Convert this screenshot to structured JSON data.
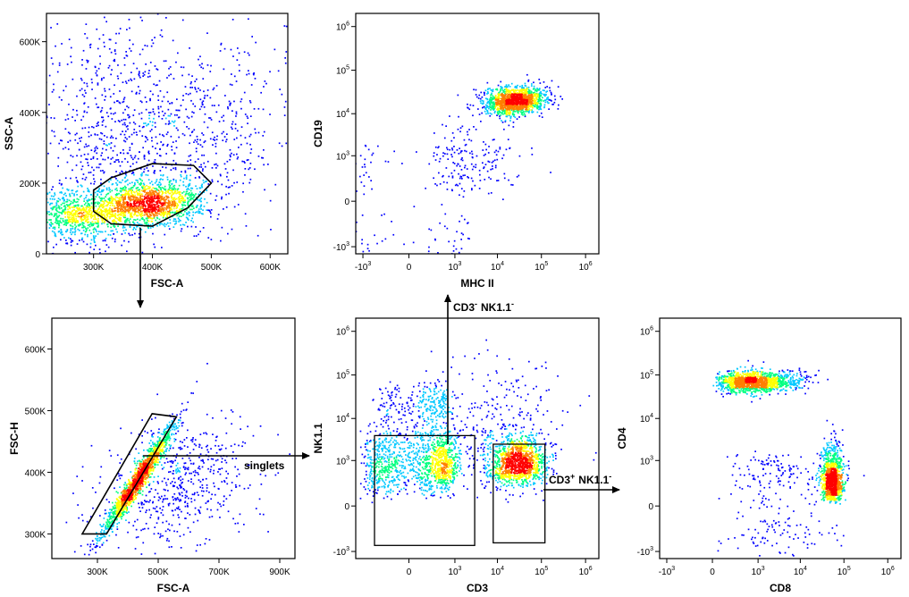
{
  "chart_data": [
    {
      "id": "p1",
      "type": "scatter",
      "subtype": "density",
      "xlabel": "FSC-A",
      "ylabel": "SSC-A",
      "xscale": "linear",
      "yscale": "linear",
      "xlim": [
        220000,
        630000
      ],
      "ylim": [
        0,
        680000
      ],
      "xticks": [
        {
          "v": 300000,
          "label": "300K"
        },
        {
          "v": 400000,
          "label": "400K"
        },
        {
          "v": 500000,
          "label": "500K"
        },
        {
          "v": 600000,
          "label": "600K"
        }
      ],
      "yticks": [
        {
          "v": 0,
          "label": "0"
        },
        {
          "v": 200000,
          "label": "200K"
        },
        {
          "v": 400000,
          "label": "400K"
        },
        {
          "v": 600000,
          "label": "600K"
        }
      ],
      "populations": [
        {
          "cx": 390000,
          "cy": 140000,
          "sx": 45000,
          "sy": 32000,
          "n": 1400,
          "rho": 0.2
        },
        {
          "cx": 270000,
          "cy": 110000,
          "sx": 40000,
          "sy": 40000,
          "n": 700,
          "rho": 0.1
        },
        {
          "cx": 430000,
          "cy": 300000,
          "sx": 110000,
          "sy": 150000,
          "n": 900,
          "rho": 0.3
        },
        {
          "cx": 330000,
          "cy": 400000,
          "sx": 60000,
          "sy": 180000,
          "n": 400,
          "rho": 0.0
        }
      ],
      "gates": [
        {
          "shape": "polygon",
          "points": [
            [
              300000,
              180000
            ],
            [
              330000,
              215000
            ],
            [
              400000,
              255000
            ],
            [
              470000,
              250000
            ],
            [
              500000,
              200000
            ],
            [
              460000,
              130000
            ],
            [
              400000,
              78000
            ],
            [
              330000,
              85000
            ],
            [
              300000,
              120000
            ]
          ]
        }
      ]
    },
    {
      "id": "p2",
      "type": "scatter",
      "subtype": "density",
      "xlabel": "MHC II",
      "ylabel": "CD19",
      "xscale": "biexponential",
      "yscale": "biexponential",
      "xlim": [
        -1500,
        2000000
      ],
      "ylim": [
        -1500,
        2000000
      ],
      "xticks": [
        {
          "v": -1000,
          "label": "-10^3"
        },
        {
          "v": 0,
          "label": "0"
        },
        {
          "v": 1000,
          "label": "10^3"
        },
        {
          "v": 10000,
          "label": "10^4"
        },
        {
          "v": 100000,
          "label": "10^5"
        },
        {
          "v": 1000000,
          "label": "10^6"
        }
      ],
      "yticks": [
        {
          "v": -1000,
          "label": "-10^3"
        },
        {
          "v": 0,
          "label": "0"
        },
        {
          "v": 1000,
          "label": "10^3"
        },
        {
          "v": 10000,
          "label": "10^4"
        },
        {
          "v": 100000,
          "label": "10^5"
        },
        {
          "v": 1000000,
          "label": "10^6"
        }
      ],
      "populations": [
        {
          "cx": 25000,
          "cy": 20000,
          "sx": 0.35,
          "sy": 0.16,
          "n": 1400,
          "rho": 0.2,
          "log": true
        },
        {
          "cx": 100,
          "cy": -50,
          "sx": 0.9,
          "sy": 0.9,
          "n": 150,
          "rho": 0.0,
          "log": true
        },
        {
          "cx": 3000,
          "cy": 800,
          "sx": 0.6,
          "sy": 0.6,
          "n": 150,
          "rho": 0.2,
          "log": true
        }
      ],
      "gates": []
    },
    {
      "id": "p3",
      "type": "scatter",
      "subtype": "density",
      "xlabel": "FSC-A",
      "ylabel": "FSC-H",
      "xscale": "linear",
      "yscale": "linear",
      "xlim": [
        150000,
        950000
      ],
      "ylim": [
        260000,
        650000
      ],
      "xticks": [
        {
          "v": 300000,
          "label": "300K"
        },
        {
          "v": 500000,
          "label": "500K"
        },
        {
          "v": 700000,
          "label": "700K"
        },
        {
          "v": 900000,
          "label": "900K"
        }
      ],
      "yticks": [
        {
          "v": 300000,
          "label": "300K"
        },
        {
          "v": 400000,
          "label": "400K"
        },
        {
          "v": 500000,
          "label": "500K"
        },
        {
          "v": 600000,
          "label": "600K"
        }
      ],
      "populations": [
        {
          "cx": 430000,
          "cy": 385000,
          "sx": 60000,
          "sy": 45000,
          "n": 1500,
          "rho": 0.97
        },
        {
          "cx": 560000,
          "cy": 380000,
          "sx": 120000,
          "sy": 50000,
          "n": 600,
          "rho": 0.2
        }
      ],
      "gates": [
        {
          "shape": "polygon",
          "points": [
            [
              250000,
              300000
            ],
            [
              480000,
              495000
            ],
            [
              560000,
              490000
            ],
            [
              330000,
              300000
            ]
          ]
        }
      ]
    },
    {
      "id": "p4",
      "type": "scatter",
      "subtype": "density",
      "xlabel": "CD3",
      "ylabel": "NK1.1",
      "xscale": "biexponential",
      "yscale": "biexponential",
      "xlim": [
        -1500,
        2000000
      ],
      "ylim": [
        -1500,
        2000000
      ],
      "xticks": [
        {
          "v": 0,
          "label": "0"
        },
        {
          "v": 1000,
          "label": "10^3"
        },
        {
          "v": 10000,
          "label": "10^4"
        },
        {
          "v": 100000,
          "label": "10^5"
        },
        {
          "v": 1000000,
          "label": "10^6"
        }
      ],
      "yticks": [
        {
          "v": -1000,
          "label": "-10^3"
        },
        {
          "v": 0,
          "label": "0"
        },
        {
          "v": 1000,
          "label": "10^3"
        },
        {
          "v": 10000,
          "label": "10^4"
        },
        {
          "v": 100000,
          "label": "10^5"
        },
        {
          "v": 1000000,
          "label": "10^6"
        }
      ],
      "populations": [
        {
          "cx": 150,
          "cy": 900,
          "sx": 0.55,
          "sy": 0.45,
          "n": 1300,
          "rho": 0.1,
          "log": true
        },
        {
          "cx": 30000,
          "cy": 900,
          "sx": 0.32,
          "sy": 0.3,
          "n": 1100,
          "rho": 0.1,
          "log": true
        },
        {
          "cx": 150,
          "cy": 22000,
          "sx": 0.35,
          "sy": 0.22,
          "n": 250,
          "rho": 0.0,
          "log": true
        },
        {
          "cx": 12000,
          "cy": 5000,
          "sx": 0.7,
          "sy": 0.9,
          "n": 350,
          "rho": 0.0,
          "log": true
        }
      ],
      "gates": [
        {
          "shape": "rect",
          "x": [
            -500,
            3000
          ],
          "y": [
            -700,
            4000
          ]
        },
        {
          "shape": "rect",
          "x": [
            8000,
            120000
          ],
          "y": [
            -600,
            2500
          ]
        }
      ]
    },
    {
      "id": "p5",
      "type": "scatter",
      "subtype": "density",
      "xlabel": "CD8",
      "ylabel": "CD4",
      "xscale": "biexponential",
      "yscale": "biexponential",
      "xlim": [
        -1500,
        2000000
      ],
      "ylim": [
        -1500,
        2000000
      ],
      "xticks": [
        {
          "v": -1000,
          "label": "-10^3"
        },
        {
          "v": 0,
          "label": "0"
        },
        {
          "v": 1000,
          "label": "10^3"
        },
        {
          "v": 10000,
          "label": "10^4"
        },
        {
          "v": 100000,
          "label": "10^5"
        },
        {
          "v": 1000000,
          "label": "10^6"
        }
      ],
      "yticks": [
        {
          "v": -1000,
          "label": "-10^3"
        },
        {
          "v": 0,
          "label": "0"
        },
        {
          "v": 1000,
          "label": "10^3"
        },
        {
          "v": 10000,
          "label": "10^4"
        },
        {
          "v": 100000,
          "label": "10^5"
        },
        {
          "v": 1000000,
          "label": "10^6"
        }
      ],
      "populations": [
        {
          "cx": 800,
          "cy": 70000,
          "sx": 0.55,
          "sy": 0.12,
          "n": 1300,
          "rho": 0.05,
          "log": true
        },
        {
          "cx": 55000,
          "cy": 300,
          "sx": 0.12,
          "sy": 0.45,
          "n": 1100,
          "rho": 0.0,
          "log": true
        },
        {
          "cx": 3000,
          "cy": 200,
          "sx": 0.7,
          "sy": 0.6,
          "n": 250,
          "rho": 0.0,
          "log": true
        }
      ],
      "gates": []
    }
  ],
  "annotations": {
    "singlets": "singlets",
    "cd3neg_label": "CD3",
    "cd3neg_sup": "-",
    "nk_neg_label": "NK1.1",
    "nk_neg_sup": "-",
    "cd3pos_label": "CD3",
    "cd3pos_sup": "+",
    "nk_pos_label": "NK1.1",
    "nk_pos_sup": "-"
  },
  "colors": {
    "density_scale": [
      "#0000ff",
      "#00c8ff",
      "#00ff80",
      "#ffff00",
      "#ff7f00",
      "#ff0000"
    ],
    "gate": "#000000",
    "arrow": "#000000"
  }
}
